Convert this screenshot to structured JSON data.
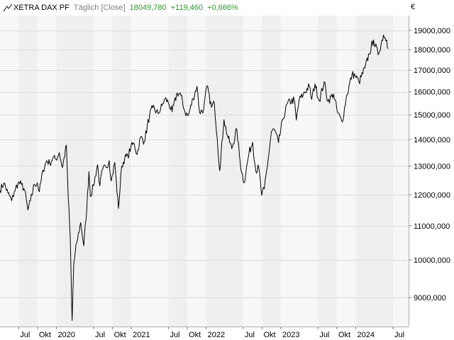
{
  "header": {
    "name": "XETRA DAX PF",
    "frequency": "Täglich [Close]",
    "last": "18049,780",
    "change": "+119,460",
    "change_pct": "+0,666%",
    "unit": "€",
    "positive_color": "#2a9a2a"
  },
  "chart_data": {
    "type": "line",
    "title": "XETRA DAX PF",
    "xlabel": "",
    "ylabel": "",
    "yscale": "log",
    "ylim": [
      8300,
      19800
    ],
    "xlim": [
      "2019-04-01",
      "2024-09-15"
    ],
    "grid": true,
    "y_ticks": [
      9000,
      10000,
      11000,
      12000,
      13000,
      14000,
      15000,
      16000,
      17000,
      18000,
      19000
    ],
    "y_tick_labels": [
      "9000,000",
      "10000,000",
      "11000,000",
      "12000,000",
      "13000,000",
      "14000,000",
      "15000,000",
      "16000,000",
      "17000,000",
      "18000,000",
      "19000,000"
    ],
    "x_ticks": [
      {
        "date": "2019-07-01",
        "label": "Jul"
      },
      {
        "date": "2019-10-01",
        "label": "Okt"
      },
      {
        "date": "2020-01-01",
        "label": "2020"
      },
      {
        "date": "2020-07-01",
        "label": "Jul"
      },
      {
        "date": "2020-10-01",
        "label": "Okt"
      },
      {
        "date": "2021-01-01",
        "label": "2021"
      },
      {
        "date": "2021-07-01",
        "label": "Jul"
      },
      {
        "date": "2021-10-01",
        "label": "Okt"
      },
      {
        "date": "2022-01-01",
        "label": "2022"
      },
      {
        "date": "2022-07-01",
        "label": "Jul"
      },
      {
        "date": "2022-10-01",
        "label": "Okt"
      },
      {
        "date": "2023-01-01",
        "label": "2023"
      },
      {
        "date": "2023-07-01",
        "label": "Jul"
      },
      {
        "date": "2023-10-01",
        "label": "Okt"
      },
      {
        "date": "2024-01-01",
        "label": "2024"
      },
      {
        "date": "2024-07-01",
        "label": "Jul"
      }
    ],
    "series": [
      {
        "color": "#000000",
        "points": [
          [
            "2019-04-01",
            12150
          ],
          [
            "2019-04-20",
            12400
          ],
          [
            "2019-05-10",
            12050
          ],
          [
            "2019-05-28",
            11800
          ],
          [
            "2019-06-10",
            12100
          ],
          [
            "2019-06-28",
            12400
          ],
          [
            "2019-07-15",
            12350
          ],
          [
            "2019-07-30",
            12150
          ],
          [
            "2019-08-15",
            11500
          ],
          [
            "2019-08-28",
            11800
          ],
          [
            "2019-09-15",
            12350
          ],
          [
            "2019-09-30",
            12400
          ],
          [
            "2019-10-10",
            12100
          ],
          [
            "2019-10-28",
            12850
          ],
          [
            "2019-11-15",
            13200
          ],
          [
            "2019-11-30",
            13100
          ],
          [
            "2019-12-15",
            13300
          ],
          [
            "2019-12-30",
            13250
          ],
          [
            "2020-01-15",
            13500
          ],
          [
            "2020-01-31",
            12950
          ],
          [
            "2020-02-19",
            13780
          ],
          [
            "2020-02-28",
            11900
          ],
          [
            "2020-03-09",
            10600
          ],
          [
            "2020-03-16",
            8800
          ],
          [
            "2020-03-18",
            8440
          ],
          [
            "2020-03-26",
            9900
          ],
          [
            "2020-04-10",
            10500
          ],
          [
            "2020-04-29",
            11100
          ],
          [
            "2020-05-14",
            10400
          ],
          [
            "2020-05-29",
            11600
          ],
          [
            "2020-06-08",
            12800
          ],
          [
            "2020-06-15",
            11950
          ],
          [
            "2020-06-30",
            12300
          ],
          [
            "2020-07-20",
            13050
          ],
          [
            "2020-07-31",
            12300
          ],
          [
            "2020-08-15",
            12900
          ],
          [
            "2020-08-31",
            12950
          ],
          [
            "2020-09-15",
            13200
          ],
          [
            "2020-09-25",
            12470
          ],
          [
            "2020-10-12",
            13130
          ],
          [
            "2020-10-30",
            11550
          ],
          [
            "2020-11-15",
            13000
          ],
          [
            "2020-11-30",
            13300
          ],
          [
            "2020-12-15",
            13350
          ],
          [
            "2020-12-30",
            13720
          ],
          [
            "2021-01-15",
            13850
          ],
          [
            "2021-01-29",
            13430
          ],
          [
            "2021-02-15",
            14100
          ],
          [
            "2021-03-05",
            13920
          ],
          [
            "2021-03-31",
            15000
          ],
          [
            "2021-04-15",
            15300
          ],
          [
            "2021-05-12",
            15050
          ],
          [
            "2021-05-31",
            15400
          ],
          [
            "2021-06-15",
            15700
          ],
          [
            "2021-06-30",
            15530
          ],
          [
            "2021-07-19",
            15130
          ],
          [
            "2021-08-13",
            15950
          ],
          [
            "2021-08-31",
            15840
          ],
          [
            "2021-09-20",
            15100
          ],
          [
            "2021-10-06",
            14970
          ],
          [
            "2021-10-29",
            15700
          ],
          [
            "2021-11-17",
            16250
          ],
          [
            "2021-11-30",
            15100
          ],
          [
            "2021-12-20",
            15240
          ],
          [
            "2022-01-05",
            16270
          ],
          [
            "2022-01-27",
            15320
          ],
          [
            "2022-02-10",
            15500
          ],
          [
            "2022-02-24",
            14050
          ],
          [
            "2022-03-08",
            12830
          ],
          [
            "2022-03-29",
            14800
          ],
          [
            "2022-04-15",
            14150
          ],
          [
            "2022-05-06",
            13650
          ],
          [
            "2022-05-31",
            14400
          ],
          [
            "2022-06-16",
            13130
          ],
          [
            "2022-07-05",
            12400
          ],
          [
            "2022-07-29",
            13480
          ],
          [
            "2022-08-16",
            13900
          ],
          [
            "2022-08-31",
            12830
          ],
          [
            "2022-09-15",
            12950
          ],
          [
            "2022-09-29",
            11980
          ],
          [
            "2022-10-12",
            12200
          ],
          [
            "2022-10-31",
            13250
          ],
          [
            "2022-11-15",
            14300
          ],
          [
            "2022-11-30",
            14400
          ],
          [
            "2022-12-20",
            13880
          ],
          [
            "2023-01-10",
            14800
          ],
          [
            "2023-02-02",
            15500
          ],
          [
            "2023-03-07",
            15650
          ],
          [
            "2023-03-17",
            14780
          ],
          [
            "2023-03-31",
            15630
          ],
          [
            "2023-04-20",
            15880
          ],
          [
            "2023-05-19",
            16270
          ],
          [
            "2023-05-31",
            15660
          ],
          [
            "2023-06-16",
            16360
          ],
          [
            "2023-07-07",
            15600
          ],
          [
            "2023-07-31",
            16450
          ],
          [
            "2023-08-18",
            15580
          ],
          [
            "2023-09-15",
            15900
          ],
          [
            "2023-10-04",
            15100
          ],
          [
            "2023-10-27",
            14700
          ],
          [
            "2023-11-15",
            15700
          ],
          [
            "2023-12-14",
            16800
          ],
          [
            "2023-12-29",
            16750
          ],
          [
            "2024-01-17",
            16430
          ],
          [
            "2024-02-15",
            17100
          ],
          [
            "2024-03-07",
            17800
          ],
          [
            "2024-03-28",
            18500
          ],
          [
            "2024-04-19",
            17750
          ],
          [
            "2024-05-15",
            18750
          ],
          [
            "2024-05-31",
            18500
          ],
          [
            "2024-06-07",
            18049.78
          ]
        ]
      }
    ]
  }
}
